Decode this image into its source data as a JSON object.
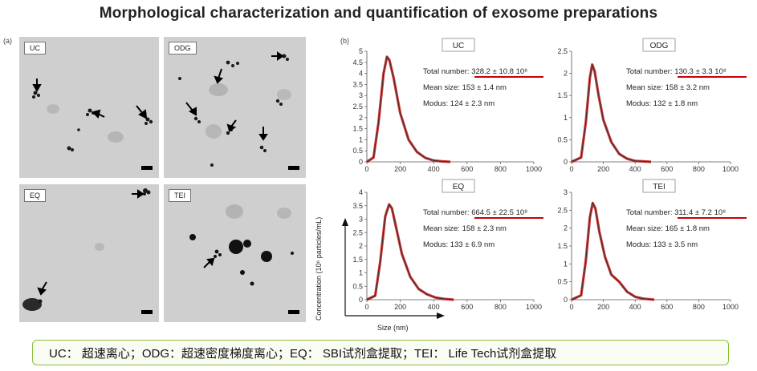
{
  "title": "Morphological characterization and quantification of exosome preparations",
  "panel_a_label": "(a)",
  "panel_b_label": "(b)",
  "micrographs": [
    {
      "label": "UC"
    },
    {
      "label": "ODG"
    },
    {
      "label": "EQ"
    },
    {
      "label": "TEI"
    }
  ],
  "chart_data": [
    {
      "type": "line",
      "title": "UC",
      "ylim": [
        0,
        5
      ],
      "yticks": [
        "0",
        "0.5",
        "1",
        "1.5",
        "2",
        "2.5",
        "3",
        "3.5",
        "4",
        "4.5",
        "5"
      ],
      "xlim": [
        0,
        1000
      ],
      "xticks": [
        "0",
        "200",
        "400",
        "600",
        "800",
        "1000"
      ],
      "x": [
        0,
        40,
        70,
        100,
        120,
        135,
        160,
        200,
        250,
        300,
        350,
        400,
        450,
        500
      ],
      "series": [
        {
          "values": [
            0,
            0.2,
            1.8,
            4.0,
            4.75,
            4.6,
            3.8,
            2.2,
            1.0,
            0.45,
            0.18,
            0.06,
            0.02,
            0
          ]
        }
      ],
      "annotations": [
        "Total number: 328.2 ± 10.8 10⁸",
        "Mean size: 153 ± 1.4 nm",
        "Modus: 124 ± 2.3 nm"
      ]
    },
    {
      "type": "line",
      "title": "ODG",
      "ylim": [
        0,
        2.5
      ],
      "yticks": [
        "0",
        "0.5",
        "1",
        "1.5",
        "2",
        "2.5"
      ],
      "xlim": [
        0,
        1000
      ],
      "xticks": [
        "0",
        "200",
        "400",
        "600",
        "800",
        "1000"
      ],
      "x": [
        0,
        60,
        90,
        115,
        130,
        145,
        170,
        200,
        250,
        300,
        350,
        400,
        450,
        500
      ],
      "series": [
        {
          "values": [
            0,
            0.1,
            0.9,
            1.9,
            2.2,
            2.05,
            1.5,
            0.95,
            0.45,
            0.18,
            0.07,
            0.02,
            0.01,
            0
          ]
        }
      ],
      "annotations": [
        "Total number: 130.3 ± 3.3 10⁸",
        "Mean size: 158 ± 3.2 nm",
        "Modus: 132 ± 1.8 nm"
      ]
    },
    {
      "type": "line",
      "title": "EQ",
      "ylim": [
        0,
        4
      ],
      "yticks": [
        "0",
        "0.5",
        "1",
        "1.5",
        "2",
        "2.5",
        "3",
        "3.5",
        "4"
      ],
      "xlim": [
        0,
        1000
      ],
      "xticks": [
        "0",
        "200",
        "400",
        "600",
        "800",
        "1000"
      ],
      "x": [
        0,
        50,
        80,
        110,
        133,
        150,
        175,
        210,
        260,
        310,
        360,
        410,
        460,
        520
      ],
      "series": [
        {
          "values": [
            0,
            0.15,
            1.4,
            3.1,
            3.55,
            3.4,
            2.7,
            1.7,
            0.85,
            0.4,
            0.2,
            0.08,
            0.03,
            0
          ]
        }
      ],
      "annotations": [
        "Total number: 664.5 ± 22.5 10⁸",
        "Mean size: 158 ± 2.3 nm",
        "Modus: 133 ± 6.9 nm"
      ]
    },
    {
      "type": "line",
      "title": "TEI",
      "ylim": [
        0,
        3
      ],
      "yticks": [
        "0",
        "0.5",
        "1",
        "1.5",
        "2",
        "2.5",
        "3"
      ],
      "xlim": [
        0,
        1000
      ],
      "xticks": [
        "0",
        "200",
        "400",
        "600",
        "800",
        "1000"
      ],
      "x": [
        0,
        60,
        90,
        115,
        133,
        150,
        175,
        210,
        250,
        300,
        350,
        400,
        450,
        520
      ],
      "series": [
        {
          "values": [
            0,
            0.12,
            1.1,
            2.3,
            2.7,
            2.55,
            1.9,
            1.2,
            0.7,
            0.5,
            0.22,
            0.08,
            0.03,
            0
          ]
        }
      ],
      "annotations": [
        "Total number: 311.4 ± 7.2 10⁸",
        "Mean size: 165 ± 1.8 nm",
        "Modus: 133 ± 3.5 nm"
      ]
    }
  ],
  "shared_ylabel": "Concentration (10⁶ particles/mL)",
  "shared_xlabel": "Size (nm)",
  "caption": "UC：  超速离心；ODG：超速密度梯度离心；EQ：  SBI试剂盒提取；TEI：  Life Tech试剂盒提取",
  "colors": {
    "curve_red": "#cc1f1f",
    "curve_black": "#333333",
    "underline_red": "#cc0000",
    "caption_border": "#8dbf3e"
  }
}
